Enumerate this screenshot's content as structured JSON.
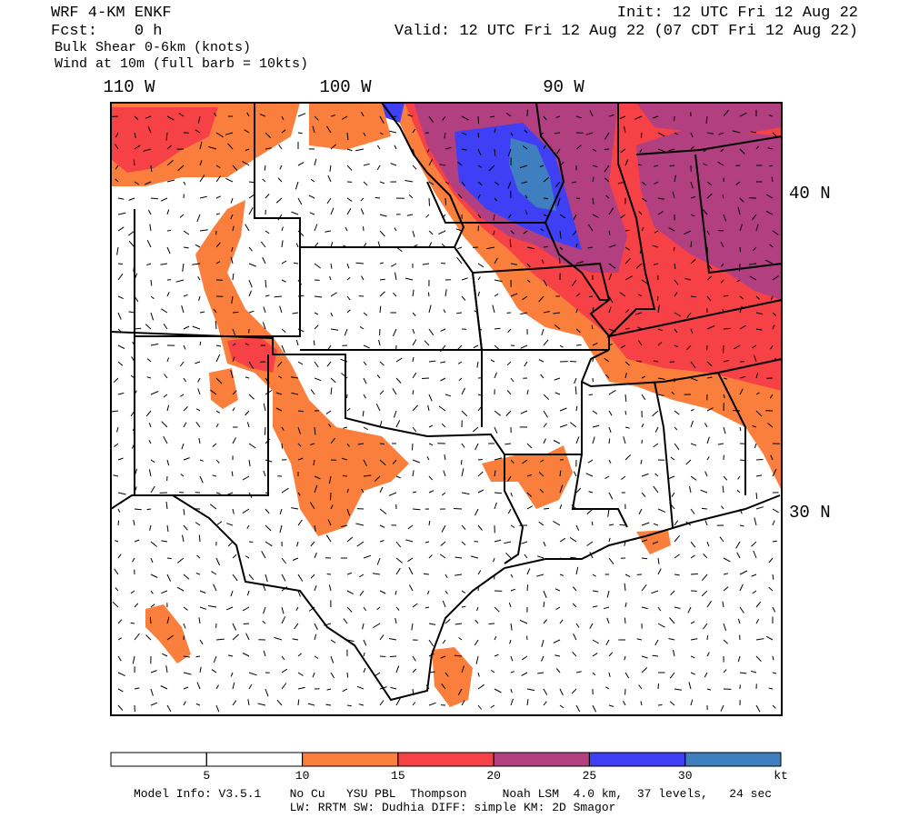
{
  "header": {
    "model": "WRF 4-KM ENKF",
    "forecast": "Fcst:    0 h",
    "field": "Bulk Shear 0-6km (knots)",
    "wind": "Wind at 10m (full barb = 10kts)",
    "init": "Init: 12 UTC Fri 12 Aug 22",
    "valid": "Valid: 12 UTC Fri 12 Aug 22 (07 CDT Fri 12 Aug 22)"
  },
  "map": {
    "longitudes": [
      "110 W",
      "100 W",
      "90 W"
    ],
    "latitudes": [
      "40 N",
      "30 N"
    ]
  },
  "colorbar": {
    "ticks": [
      5,
      10,
      15,
      20,
      25,
      30
    ],
    "unit": "kt",
    "colors": [
      "#ffffff",
      "#ffffff",
      "#fa7f3c",
      "#f64147",
      "#b23f7f",
      "#3f3ff5",
      "#3f7fbf"
    ]
  },
  "footer": {
    "line1": "Model Info: V3.5.1    No Cu   YSU PBL  Thompson     Noah LSM  4.0 km,  37 levels,   24 sec",
    "line2": "LW: RRTM SW: Dudhia  DIFF: simple KM: 2D Smagor"
  }
}
